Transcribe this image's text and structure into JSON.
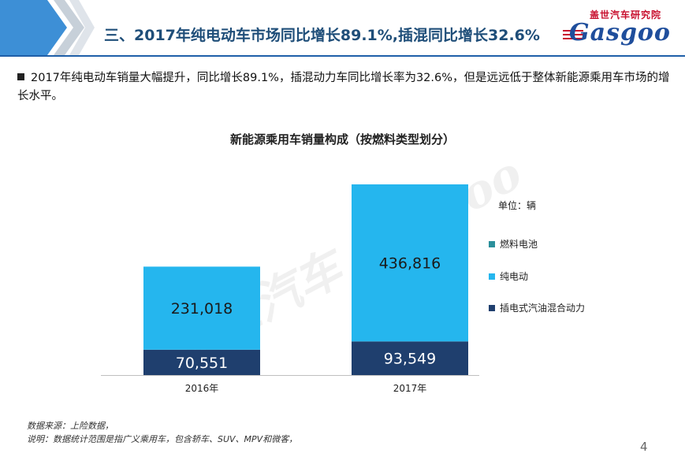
{
  "slide": {
    "title": "三、2017年纯电动车市场同比增长89.1%,插混同比增长32.6%",
    "logo_cn": "盖世汽车研究院",
    "logo_en": "Gasgoo",
    "bullet": "2017年纯电动车销量大幅提升，同比增长89.1%，插混动力车同比增长率为32.6%，但是远远低于整体新能源乘用车市场的增长水平。",
    "footnote_source": "数据来源：上险数据，",
    "footnote_note": "说明：数据统计范围是指广义乘用车，包含轿车、SUV、MPV和微客，",
    "page_number": "4"
  },
  "chart_data": {
    "type": "bar",
    "stacked": true,
    "title": "新能源乘用车销量构成（按燃料类型划分）",
    "unit_label": "单位：辆",
    "categories": [
      "2016年",
      "2017年"
    ],
    "series": [
      {
        "name": "插电式汽油混合动力",
        "values": [
          70551,
          93549
        ],
        "labels": [
          "70,551",
          "93,549"
        ],
        "color": "#1f3f6e"
      },
      {
        "name": "纯电动",
        "values": [
          231018,
          436816
        ],
        "labels": [
          "231,018",
          "436,816"
        ],
        "color": "#25b6ee"
      },
      {
        "name": "燃料电池",
        "values": [
          0,
          0
        ],
        "labels": [
          "",
          ""
        ],
        "color": "#2a8f9b"
      }
    ],
    "legend_order": [
      "燃料电池",
      "纯电动",
      "插电式汽油混合动力"
    ],
    "legend_position": "right",
    "watermark": "盖世汽车 Gasgoo",
    "grid": false
  }
}
